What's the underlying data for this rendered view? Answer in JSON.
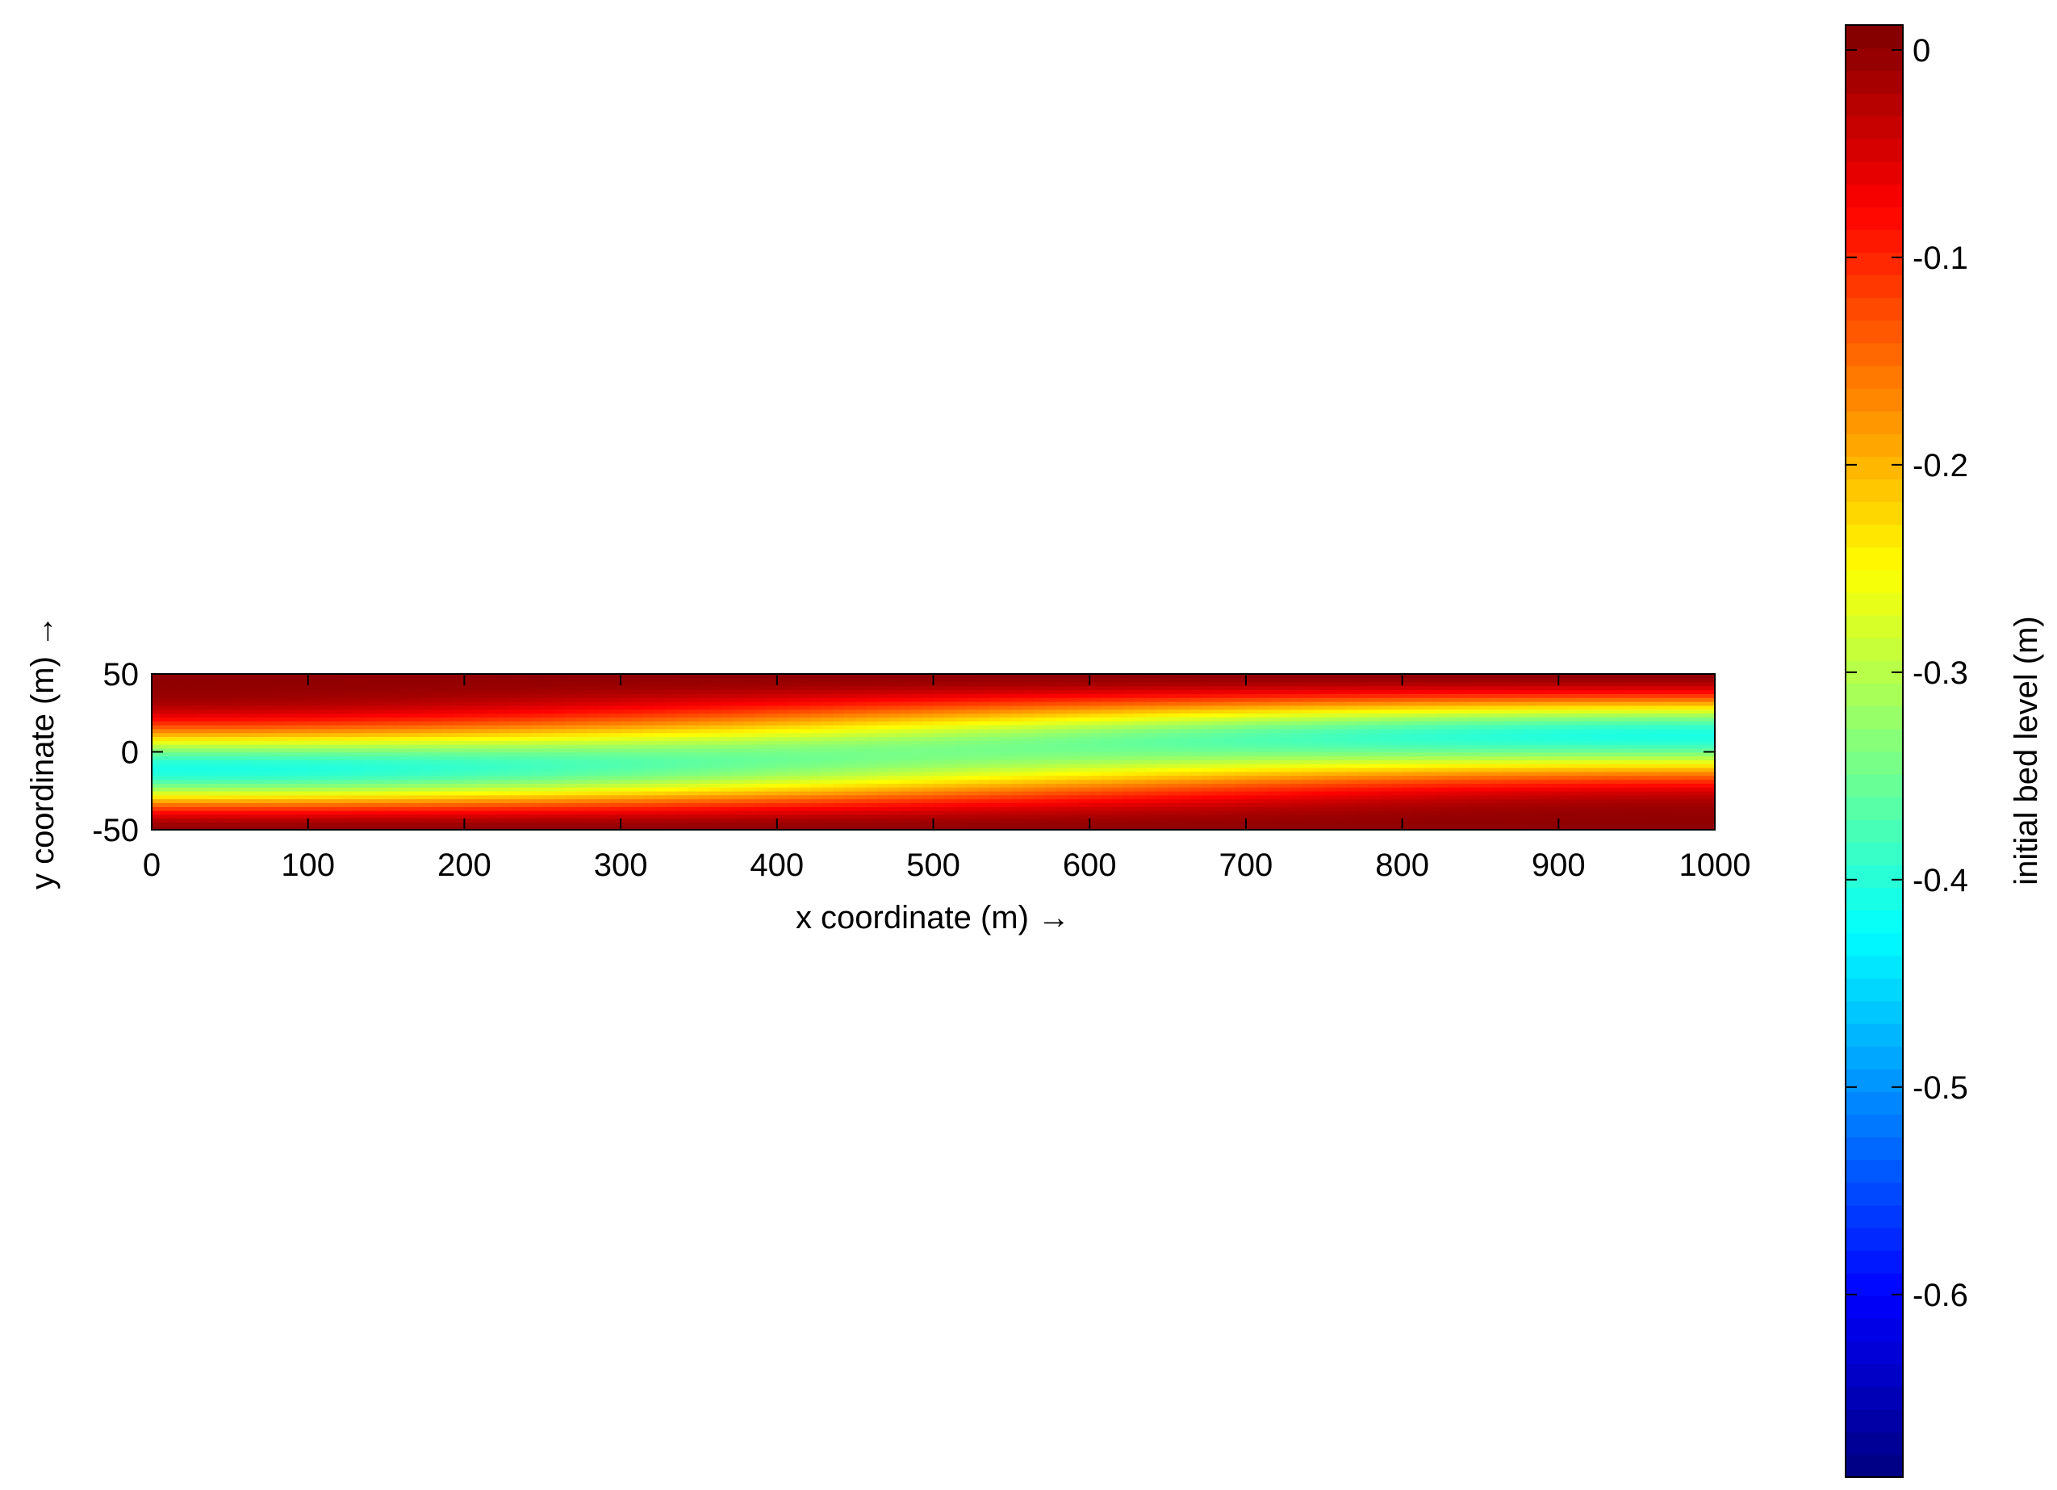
{
  "chart_data": {
    "type": "heatmap",
    "title": "",
    "xlabel": "x coordinate (m) →",
    "ylabel": "y coordinate (m) →",
    "colorbar_label": "initial bed level (m)",
    "colormap": "jet",
    "xlim": [
      0,
      1000
    ],
    "ylim": [
      -50,
      50
    ],
    "clim": [
      -0.688,
      0.012
    ],
    "xticks": [
      0,
      100,
      200,
      300,
      400,
      500,
      600,
      700,
      800,
      900,
      1000
    ],
    "xtick_labels": [
      "0",
      "100",
      "200",
      "300",
      "400",
      "500",
      "600",
      "700",
      "800",
      "900",
      "1000"
    ],
    "yticks": [
      50,
      0,
      -50
    ],
    "ytick_labels": [
      "50",
      "0",
      "-50"
    ],
    "cticks": [
      0,
      -0.1,
      -0.2,
      -0.3,
      -0.4,
      -0.5,
      -0.6
    ],
    "ctick_labels": [
      "0",
      "-0.1",
      "-0.2",
      "-0.3",
      "-0.4",
      "-0.5",
      "-0.6"
    ],
    "field": {
      "description": "bed level z(x,y) = -A*sin(pi*(y+50)/100)^2 * (0.5 + 0.5*cos(pi*(y+50)/100)*cos(pi*x/1000)), zero at y = -50 and y = 50",
      "amplitude": 0.688
    },
    "grid": false,
    "legend": "colorbar-right"
  }
}
